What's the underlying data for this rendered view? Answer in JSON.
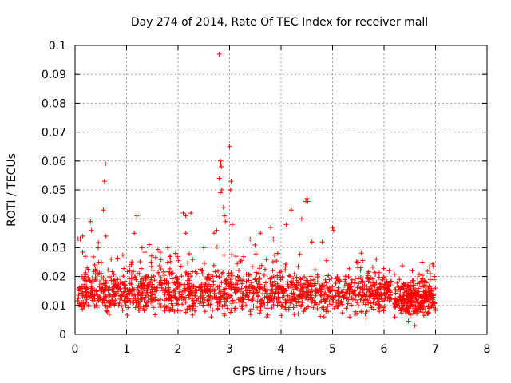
{
  "chart_data": {
    "type": "scatter",
    "title": "Day 274 of 2014, Rate Of TEC Index for receiver mall",
    "xlabel": "GPS time / hours",
    "ylabel": "ROTI / TECUs",
    "xlim": [
      0,
      8
    ],
    "ylim": [
      0,
      0.1
    ],
    "xticks": [
      "0",
      "1",
      "2",
      "3",
      "4",
      "5",
      "6",
      "7",
      "8"
    ],
    "yticks": [
      "0",
      "0.01",
      "0.02",
      "0.03",
      "0.04",
      "0.05",
      "0.06",
      "0.07",
      "0.08",
      "0.09",
      "0.1"
    ],
    "grid": true,
    "marker": "+",
    "color": "#ff0000",
    "series": [
      {
        "name": "ROTI",
        "x_range_main": [
          0.05,
          6.15
        ],
        "x_range_second": [
          6.15,
          7.0
        ],
        "bulk_range": [
          0.004,
          0.022
        ],
        "notable_points": [
          [
            0.06,
            0.033
          ],
          [
            0.1,
            0.033
          ],
          [
            0.15,
            0.034
          ],
          [
            0.2,
            0.027
          ],
          [
            0.3,
            0.039
          ],
          [
            0.32,
            0.036
          ],
          [
            0.45,
            0.03
          ],
          [
            0.55,
            0.043
          ],
          [
            0.57,
            0.053
          ],
          [
            0.59,
            0.059
          ],
          [
            0.6,
            0.034
          ],
          [
            0.7,
            0.026
          ],
          [
            1.2,
            0.041
          ],
          [
            1.15,
            0.035
          ],
          [
            1.3,
            0.03
          ],
          [
            1.8,
            0.03
          ],
          [
            1.95,
            0.028
          ],
          [
            2.1,
            0.042
          ],
          [
            2.15,
            0.041
          ],
          [
            2.25,
            0.042
          ],
          [
            2.15,
            0.035
          ],
          [
            2.5,
            0.03
          ],
          [
            2.7,
            0.035
          ],
          [
            2.75,
            0.036
          ],
          [
            2.8,
            0.097
          ],
          [
            2.82,
            0.06
          ],
          [
            2.83,
            0.059
          ],
          [
            2.84,
            0.058
          ],
          [
            2.85,
            0.05
          ],
          [
            2.82,
            0.049
          ],
          [
            2.8,
            0.054
          ],
          [
            2.88,
            0.044
          ],
          [
            2.9,
            0.041
          ],
          [
            2.92,
            0.039
          ],
          [
            3.0,
            0.065
          ],
          [
            3.03,
            0.053
          ],
          [
            3.02,
            0.05
          ],
          [
            3.05,
            0.038
          ],
          [
            3.4,
            0.033
          ],
          [
            3.6,
            0.035
          ],
          [
            3.8,
            0.037
          ],
          [
            3.85,
            0.033
          ],
          [
            4.1,
            0.038
          ],
          [
            4.2,
            0.043
          ],
          [
            4.4,
            0.04
          ],
          [
            4.48,
            0.046
          ],
          [
            4.5,
            0.047
          ],
          [
            4.52,
            0.046
          ],
          [
            4.6,
            0.032
          ],
          [
            4.8,
            0.032
          ],
          [
            5.0,
            0.037
          ],
          [
            5.02,
            0.036
          ],
          [
            5.5,
            0.025
          ],
          [
            5.85,
            0.026
          ],
          [
            6.1,
            0.022
          ],
          [
            6.3,
            0.019
          ],
          [
            6.55,
            0.022
          ],
          [
            6.9,
            0.021
          ],
          [
            6.98,
            0.02
          ],
          [
            6.6,
            0.003
          ]
        ]
      }
    ]
  }
}
